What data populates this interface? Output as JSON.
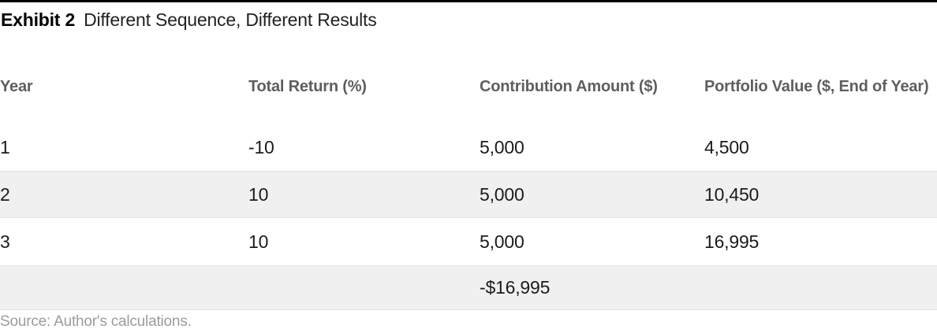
{
  "exhibit": {
    "label": "Exhibit 2",
    "title": "Different Sequence, Different Results"
  },
  "table": {
    "columns": [
      {
        "label": "Year"
      },
      {
        "label": "Total Return (%)"
      },
      {
        "label": "Contribution Amount ($)"
      },
      {
        "label": "Portfolio Value ($, End of Year)"
      }
    ],
    "rows": [
      [
        "1",
        "-10",
        "5,000",
        "4,500"
      ],
      [
        "2",
        "10",
        "5,000",
        "10,450"
      ],
      [
        "3",
        "10",
        "5,000",
        "16,995"
      ],
      [
        "",
        "",
        "-$16,995",
        ""
      ]
    ]
  },
  "source": "Source: Author's calculations.",
  "colors": {
    "top_rule": "#000000",
    "header_text": "#5e5e5e",
    "body_text": "#1b1b1b",
    "row_shade": "#f0f0f0",
    "row_edge": "#e2e2e2",
    "source_text": "#9c9c9c"
  },
  "chart_data": {
    "type": "table",
    "title": "Exhibit 2  Different Sequence, Different Results",
    "columns": [
      "Year",
      "Total Return (%)",
      "Contribution Amount ($)",
      "Portfolio Value ($, End of Year)"
    ],
    "rows": [
      [
        "1",
        "-10",
        "5,000",
        "4,500"
      ],
      [
        "2",
        "10",
        "5,000",
        "10,450"
      ],
      [
        "3",
        "10",
        "5,000",
        "16,995"
      ],
      [
        "",
        "",
        "-$16,995",
        ""
      ]
    ],
    "notes": "Row for years 1-3 show annual total return, contribution, and end-of-year portfolio value; final shaded row shows total contributions of -$16,995 in the Contribution Amount column; rows 2 and 4 are shaded light gray",
    "source": "Source: Author's calculations."
  }
}
